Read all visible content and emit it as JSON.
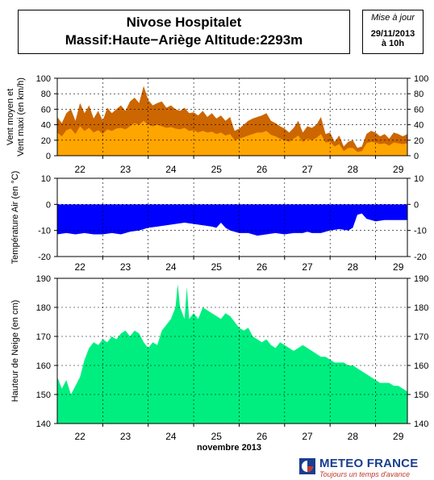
{
  "header": {
    "title_line1": "Nivose Hospitalet",
    "title_line2": "Massif:Haute−Ariège Altitude:2293m",
    "update_label": "Mise à jour",
    "update_date": "29/11/2013",
    "update_time": "à 10h"
  },
  "logo": {
    "name": "METEO FRANCE",
    "tagline": "Toujours un temps d'avance",
    "icon": "meteo-france-logo-icon",
    "colors": {
      "blue": "#1a3d8f",
      "red": "#c0392b"
    }
  },
  "x_axis": {
    "days": [
      "22",
      "23",
      "24",
      "25",
      "26",
      "27",
      "28",
      "29"
    ],
    "month_label": "novembre 2013",
    "range": [
      21.5,
      29.2
    ]
  },
  "chart_data": [
    {
      "type": "area",
      "ylabel": "Vent moyen et Vent maxi (en km/h)",
      "ylim": [
        0,
        100
      ],
      "yticks": [
        0,
        20,
        40,
        60,
        80,
        100
      ],
      "grid": true,
      "colors": {
        "max": "#cc6600",
        "mean": "#ffa500"
      },
      "series": [
        {
          "x": [
            21.5,
            21.6,
            21.7,
            21.8,
            21.9,
            22.0,
            22.1,
            22.2,
            22.3,
            22.4,
            22.5,
            22.6,
            22.7,
            22.8,
            22.9,
            23.0,
            23.1,
            23.2,
            23.3,
            23.4,
            23.5,
            23.6,
            23.7,
            23.8,
            23.9,
            24.0,
            24.1,
            24.2,
            24.3,
            24.4,
            24.5,
            24.6,
            24.7,
            24.8,
            24.9,
            25.0,
            25.1,
            25.2,
            25.3,
            25.4,
            25.5,
            25.6,
            25.7,
            25.8,
            25.9,
            26.0,
            26.1,
            26.2,
            26.3,
            26.4,
            26.5,
            26.6,
            26.7,
            26.8,
            26.9,
            27.0,
            27.1,
            27.2,
            27.3,
            27.4,
            27.5,
            27.6,
            27.7,
            27.8,
            27.9,
            28.0,
            28.1,
            28.2,
            28.3,
            28.4,
            28.5,
            28.6,
            28.7,
            28.8,
            28.9,
            29.0,
            29.1,
            29.2
          ],
          "values": [
            50,
            42,
            55,
            60,
            45,
            68,
            55,
            65,
            48,
            58,
            45,
            62,
            55,
            60,
            65,
            58,
            70,
            75,
            68,
            90,
            72,
            65,
            68,
            70,
            62,
            65,
            60,
            58,
            62,
            55,
            56,
            52,
            58,
            50,
            55,
            48,
            52,
            45,
            50,
            32,
            35,
            40,
            45,
            48,
            50,
            52,
            55,
            45,
            42,
            38,
            35,
            30,
            36,
            45,
            30,
            38,
            36,
            40,
            50,
            28,
            30,
            18,
            26,
            12,
            18,
            20,
            10,
            12,
            28,
            32,
            30,
            25,
            28,
            22,
            30,
            28,
            25,
            28
          ]
        },
        {
          "x": [
            21.5,
            21.6,
            21.7,
            21.8,
            21.9,
            22.0,
            22.1,
            22.2,
            22.3,
            22.4,
            22.5,
            22.6,
            22.7,
            22.8,
            22.9,
            23.0,
            23.1,
            23.2,
            23.3,
            23.4,
            23.5,
            23.6,
            23.7,
            23.8,
            23.9,
            24.0,
            24.1,
            24.2,
            24.3,
            24.4,
            24.5,
            24.6,
            24.7,
            24.8,
            24.9,
            25.0,
            25.1,
            25.2,
            25.3,
            25.4,
            25.5,
            25.6,
            25.7,
            25.8,
            25.9,
            26.0,
            26.1,
            26.2,
            26.3,
            26.4,
            26.5,
            26.6,
            26.7,
            26.8,
            26.9,
            27.0,
            27.1,
            27.2,
            27.3,
            27.4,
            27.5,
            27.6,
            27.7,
            27.8,
            27.9,
            28.0,
            28.1,
            28.2,
            28.3,
            28.4,
            28.5,
            28.6,
            28.7,
            28.8,
            28.9,
            29.0,
            29.1,
            29.2
          ],
          "values": [
            30,
            25,
            33,
            35,
            28,
            38,
            32,
            36,
            30,
            33,
            28,
            34,
            32,
            35,
            36,
            34,
            38,
            42,
            40,
            45,
            40,
            38,
            40,
            38,
            36,
            37,
            35,
            34,
            36,
            32,
            33,
            30,
            32,
            30,
            31,
            28,
            30,
            26,
            28,
            20,
            22,
            24,
            26,
            28,
            30,
            30,
            32,
            27,
            25,
            22,
            20,
            18,
            22,
            26,
            18,
            22,
            20,
            23,
            28,
            17,
            18,
            12,
            15,
            6,
            10,
            10,
            5,
            6,
            16,
            18,
            17,
            15,
            16,
            13,
            17,
            16,
            15,
            16
          ]
        }
      ]
    },
    {
      "type": "area",
      "ylabel": "Température Air (en °C)",
      "ylim": [
        -20,
        10
      ],
      "yticks": [
        -20,
        -10,
        0,
        10
      ],
      "grid": true,
      "colors": {
        "fill": "#0000ff"
      },
      "series": [
        {
          "x": [
            21.5,
            21.7,
            21.9,
            22.1,
            22.3,
            22.5,
            22.7,
            22.9,
            23.1,
            23.3,
            23.5,
            23.7,
            23.9,
            24.1,
            24.3,
            24.5,
            24.7,
            24.9,
            25.0,
            25.1,
            25.2,
            25.3,
            25.5,
            25.7,
            25.9,
            26.1,
            26.3,
            26.5,
            26.7,
            26.9,
            27.0,
            27.1,
            27.3,
            27.5,
            27.7,
            27.9,
            28.0,
            28.1,
            28.2,
            28.3,
            28.5,
            28.7,
            28.9,
            29.1,
            29.2
          ],
          "values": [
            -11.5,
            -11,
            -11.5,
            -11,
            -11.5,
            -11.5,
            -11,
            -11.5,
            -10.5,
            -10,
            -9,
            -8.5,
            -8,
            -7.5,
            -7,
            -7.5,
            -8,
            -8.5,
            -9,
            -7,
            -9,
            -10,
            -11,
            -11,
            -12,
            -11.5,
            -11,
            -11.5,
            -11,
            -11,
            -10.5,
            -11,
            -11,
            -10,
            -9.5,
            -10,
            -9,
            -4,
            -3.5,
            -5.5,
            -6.5,
            -6,
            -6,
            -6,
            -6
          ]
        }
      ]
    },
    {
      "type": "area",
      "ylabel": "Hauteur de Neige (en cm)",
      "ylim": [
        140,
        190
      ],
      "yticks": [
        140,
        150,
        160,
        170,
        180,
        190
      ],
      "grid": true,
      "colors": {
        "fill": "#00ee80"
      },
      "series": [
        {
          "x": [
            21.5,
            21.6,
            21.7,
            21.8,
            21.9,
            22.0,
            22.1,
            22.2,
            22.3,
            22.4,
            22.5,
            22.6,
            22.7,
            22.8,
            22.9,
            23.0,
            23.1,
            23.2,
            23.3,
            23.4,
            23.5,
            23.6,
            23.7,
            23.8,
            23.9,
            24.0,
            24.1,
            24.15,
            24.2,
            24.3,
            24.35,
            24.4,
            24.5,
            24.6,
            24.7,
            24.8,
            24.9,
            25.0,
            25.1,
            25.2,
            25.3,
            25.4,
            25.5,
            25.6,
            25.7,
            25.8,
            25.9,
            26.0,
            26.1,
            26.2,
            26.3,
            26.4,
            26.5,
            26.6,
            26.7,
            26.8,
            26.9,
            27.0,
            27.1,
            27.2,
            27.3,
            27.4,
            27.5,
            27.6,
            27.7,
            27.8,
            27.9,
            28.0,
            28.1,
            28.2,
            28.3,
            28.4,
            28.5,
            28.6,
            28.7,
            28.8,
            28.9,
            29.0,
            29.1,
            29.2
          ],
          "values": [
            156,
            152,
            155,
            150,
            153,
            156,
            162,
            166,
            168,
            167,
            169,
            168,
            170,
            169,
            171,
            172,
            170,
            172,
            171,
            168,
            166,
            168,
            167,
            172,
            174,
            176,
            180,
            188,
            180,
            176,
            187,
            176,
            178,
            176,
            180,
            179,
            178,
            177,
            176,
            178,
            177,
            175,
            173,
            172,
            173,
            170,
            169,
            168,
            169,
            167,
            166,
            168,
            167,
            166,
            165,
            166,
            167,
            166,
            165,
            164,
            163,
            163,
            162,
            161,
            161,
            161,
            160,
            160,
            159,
            158,
            157,
            156,
            155,
            154,
            154,
            154,
            153,
            153,
            152,
            151
          ]
        }
      ]
    }
  ]
}
